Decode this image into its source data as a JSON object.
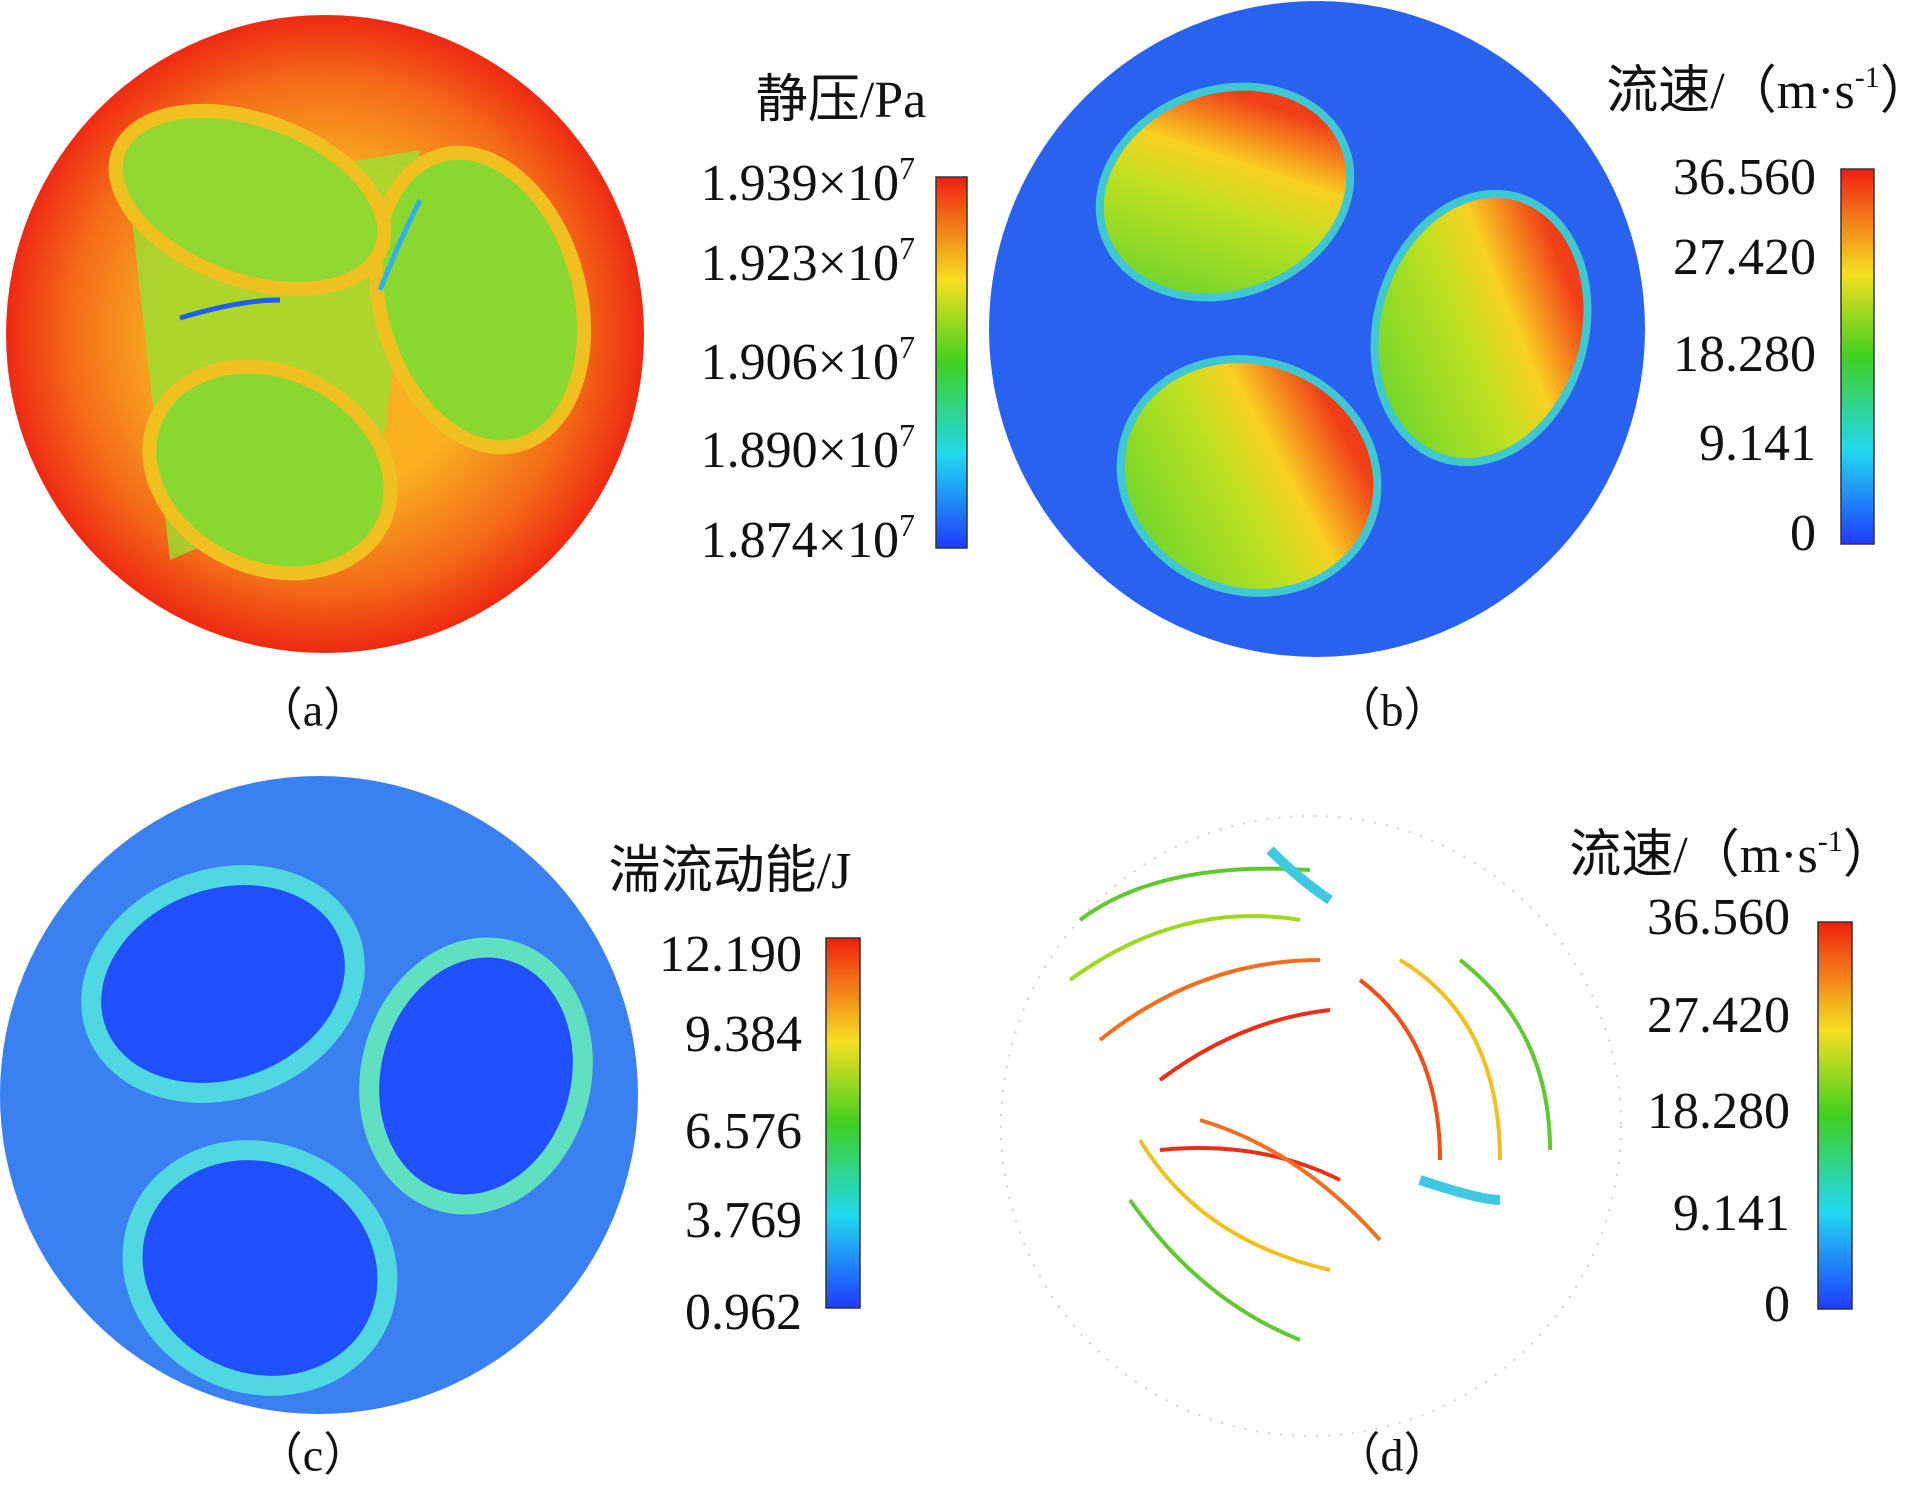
{
  "panels": [
    {
      "label": "（a）",
      "legend": {
        "title": {
          "text": "静压/Pa"
        },
        "ticks": [
          {
            "mantissa": "1.939",
            "times": "×10",
            "exponent": "7"
          },
          {
            "mantissa": "1.923",
            "times": "×10",
            "exponent": "7"
          },
          {
            "mantissa": "1.906",
            "times": "×10",
            "exponent": "7"
          },
          {
            "mantissa": "1.890",
            "times": "×10",
            "exponent": "7"
          },
          {
            "mantissa": "1.874",
            "times": "×10",
            "exponent": "7"
          }
        ]
      }
    },
    {
      "label": "（b）",
      "legend": {
        "title": {
          "text": "流速/（m·s",
          "sup": "-1",
          "end": "）"
        },
        "ticks": [
          {
            "mantissa": "36.560"
          },
          {
            "mantissa": "27.420"
          },
          {
            "mantissa": "18.280"
          },
          {
            "mantissa": "9.141"
          },
          {
            "mantissa": "0"
          }
        ]
      }
    },
    {
      "label": "（c）",
      "legend": {
        "title": {
          "text": "湍流动能/J"
        },
        "ticks": [
          {
            "mantissa": "12.190"
          },
          {
            "mantissa": "9.384"
          },
          {
            "mantissa": "6.576"
          },
          {
            "mantissa": "3.769"
          },
          {
            "mantissa": "0.962"
          }
        ]
      }
    },
    {
      "label": "（d）",
      "legend": {
        "title": {
          "text": "流速/（m·s",
          "sup": "-1",
          "end": "）"
        },
        "ticks": [
          {
            "mantissa": "36.560"
          },
          {
            "mantissa": "27.420"
          },
          {
            "mantissa": "18.280"
          },
          {
            "mantissa": "9.141"
          },
          {
            "mantissa": "0"
          }
        ]
      }
    }
  ]
}
